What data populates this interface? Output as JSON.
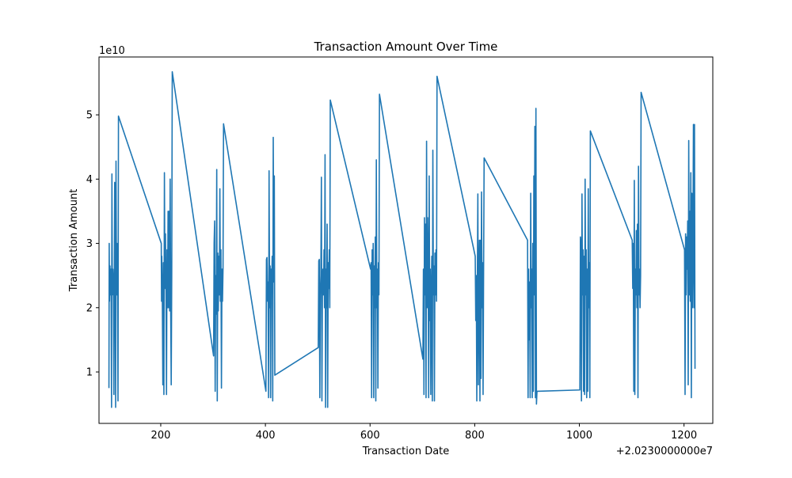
{
  "chart_data": {
    "type": "line",
    "title": "Transaction Amount Over Time",
    "xlabel": "Transaction Date",
    "ylabel": "Transaction Amount",
    "x_offset_text": "+2.0230000000e7",
    "y_scale_text": "1e10",
    "xlim": [
      20230082,
      20231255
    ],
    "ylim": [
      2000000000.0,
      59000000000.0
    ],
    "xticks": [
      20230200,
      20230400,
      20230600,
      20230800,
      20231000,
      20231200
    ],
    "xtick_labels": [
      "200",
      "400",
      "600",
      "800",
      "1000",
      "1200"
    ],
    "yticks": [
      10000000000.0,
      20000000000.0,
      30000000000.0,
      40000000000.0,
      50000000000.0
    ],
    "ytick_labels": [
      "1",
      "2",
      "3",
      "4",
      "5"
    ],
    "grid": false,
    "series": [
      {
        "color": "#1f77b4",
        "points": [
          [
            20230101,
            7500000000.0
          ],
          [
            20230101.5,
            30000000000.0
          ],
          [
            20230102,
            21000000000.0
          ],
          [
            20230103,
            26500000000.0
          ],
          [
            20230104,
            22000000000.0
          ],
          [
            20230105,
            26000000000.0
          ],
          [
            20230106,
            4500000000.0
          ],
          [
            20230106.7,
            40800000000.0
          ],
          [
            20230107.5,
            22000000000.0
          ],
          [
            20230108.5,
            26000000000.0
          ],
          [
            20230109.5,
            24000000000.0
          ],
          [
            20230110.5,
            6500000000.0
          ],
          [
            20230111.3,
            26000000000.0
          ],
          [
            20230112,
            39500000000.0
          ],
          [
            20230113,
            22000000000.0
          ],
          [
            20230113.8,
            4500000000.0
          ],
          [
            20230114.5,
            42800000000.0
          ],
          [
            20230115.5,
            22000000000.0
          ],
          [
            20230116.5,
            30000000000.0
          ],
          [
            20230117.5,
            22000000000.0
          ],
          [
            20230118.3,
            5500000000.0
          ],
          [
            20230119.2,
            49800000000.0
          ],
          [
            20230201,
            30000000000.0
          ],
          [
            20230201.5,
            21000000000.0
          ],
          [
            20230202,
            28000000000.0
          ],
          [
            20230203,
            22000000000.0
          ],
          [
            20230204,
            8000000000.0
          ],
          [
            20230205,
            27000000000.0
          ],
          [
            20230206,
            6500000000.0
          ],
          [
            20230207,
            41000000000.0
          ],
          [
            20230208,
            23000000000.0
          ],
          [
            20230209,
            31500000000.0
          ],
          [
            20230210,
            22500000000.0
          ],
          [
            20230211,
            6500000000.0
          ],
          [
            20230212,
            29000000000.0
          ],
          [
            20230213,
            20000000000.0
          ],
          [
            20230214,
            35000000000.0
          ],
          [
            20230215,
            20000000000.0
          ],
          [
            20230216,
            35000000000.0
          ],
          [
            20230217,
            19500000000.0
          ],
          [
            20230218,
            40000000000.0
          ],
          [
            20230219,
            20000000000.0
          ],
          [
            20230220,
            8000000000.0
          ],
          [
            20230221,
            25000000000.0
          ],
          [
            20230222,
            56700000000.0
          ],
          [
            20230301,
            12500000000.0
          ],
          [
            20230302,
            30000000000.0
          ],
          [
            20230303,
            33500000000.0
          ],
          [
            20230304,
            7000000000.0
          ],
          [
            20230305,
            25000000000.0
          ],
          [
            20230306,
            19000000000.0
          ],
          [
            20230307,
            41500000000.0
          ],
          [
            20230308,
            5500000000.0
          ],
          [
            20230309,
            28500000000.0
          ],
          [
            20230310,
            19500000000.0
          ],
          [
            20230311,
            28000000000.0
          ],
          [
            20230312,
            22000000000.0
          ],
          [
            20230313,
            38500000000.0
          ],
          [
            20230314,
            21000000000.0
          ],
          [
            20230315,
            29000000000.0
          ],
          [
            20230316,
            7500000000.0
          ],
          [
            20230317,
            26000000000.0
          ],
          [
            20230318,
            21000000000.0
          ],
          [
            20230319,
            26000000000.0
          ],
          [
            20230320,
            48600000000.0
          ],
          [
            20230401,
            7000000000.0
          ],
          [
            20230402,
            27500000000.0
          ],
          [
            20230403,
            27800000000.0
          ],
          [
            20230404,
            21000000000.0
          ],
          [
            20230405,
            24000000000.0
          ],
          [
            20230406,
            6000000000.0
          ],
          [
            20230407,
            41300000000.0
          ],
          [
            20230408,
            20000000000.0
          ],
          [
            20230409,
            26500000000.0
          ],
          [
            20230410,
            6000000000.0
          ],
          [
            20230411,
            26000000000.0
          ],
          [
            20230412,
            24000000000.0
          ],
          [
            20230413,
            28000000000.0
          ],
          [
            20230414,
            5500000000.0
          ],
          [
            20230415,
            46500000000.0
          ],
          [
            20230416,
            24000000000.0
          ],
          [
            20230417,
            40500000000.0
          ],
          [
            20230418,
            9500000000.0
          ],
          [
            20230501,
            13800000000.0
          ],
          [
            20230502,
            27300000000.0
          ],
          [
            20230503,
            27500000000.0
          ],
          [
            20230504,
            6000000000.0
          ],
          [
            20230505,
            22000000000.0
          ],
          [
            20230506,
            25000000000.0
          ],
          [
            20230507,
            40300000000.0
          ],
          [
            20230508,
            5500000000.0
          ],
          [
            20230509,
            24000000000.0
          ],
          [
            20230510,
            26000000000.0
          ],
          [
            20230511,
            22000000000.0
          ],
          [
            20230512,
            29000000000.0
          ],
          [
            20230513,
            20000000000.0
          ],
          [
            20230514,
            43800000000.0
          ],
          [
            20230515,
            4500000000.0
          ],
          [
            20230516,
            26000000000.0
          ],
          [
            20230517,
            20000000000.0
          ],
          [
            20230518,
            33000000000.0
          ],
          [
            20230519,
            4500000000.0
          ],
          [
            20230520,
            27000000000.0
          ],
          [
            20230521,
            23000000000.0
          ],
          [
            20230522,
            29000000000.0
          ],
          [
            20230523,
            20000000000.0
          ],
          [
            20230524,
            52300000000.0
          ],
          [
            20230601,
            26000000000.0
          ],
          [
            20230602,
            27000000000.0
          ],
          [
            20230603,
            6000000000.0
          ],
          [
            20230604,
            29000000000.0
          ],
          [
            20230605,
            22000000000.0
          ],
          [
            20230606,
            30000000000.0
          ],
          [
            20230607,
            6000000000.0
          ],
          [
            20230608,
            26500000000.0
          ],
          [
            20230609,
            20000000000.0
          ],
          [
            20230610,
            31000000000.0
          ],
          [
            20230611,
            5500000000.0
          ],
          [
            20230612,
            43000000000.0
          ],
          [
            20230613,
            20000000000.0
          ],
          [
            20230614,
            26000000000.0
          ],
          [
            20230615,
            7500000000.0
          ],
          [
            20230616,
            27000000000.0
          ],
          [
            20230617,
            22000000000.0
          ],
          [
            20230618,
            53200000000.0
          ],
          [
            20230701,
            12000000000.0
          ],
          [
            20230702,
            26000000000.0
          ],
          [
            20230703,
            6500000000.0
          ],
          [
            20230704,
            34000000000.0
          ],
          [
            20230705,
            22000000000.0
          ],
          [
            20230706,
            33000000000.0
          ],
          [
            20230707,
            6000000000.0
          ],
          [
            20230708,
            45900000000.0
          ],
          [
            20230709,
            20000000000.0
          ],
          [
            20230710,
            34000000000.0
          ],
          [
            20230711,
            26000000000.0
          ],
          [
            20230712,
            6000000000.0
          ],
          [
            20230713,
            40500000000.0
          ],
          [
            20230714,
            18000000000.0
          ],
          [
            20230715,
            26000000000.0
          ],
          [
            20230716,
            6500000000.0
          ],
          [
            20230717,
            22000000000.0
          ],
          [
            20230718,
            28000000000.0
          ],
          [
            20230719,
            5500000000.0
          ],
          [
            20230720,
            44500000000.0
          ],
          [
            20230721,
            22000000000.0
          ],
          [
            20230722,
            26500000000.0
          ],
          [
            20230723,
            5500000000.0
          ],
          [
            20230724,
            28500000000.0
          ],
          [
            20230725,
            22000000000.0
          ],
          [
            20230726,
            29000000000.0
          ],
          [
            20230727,
            21000000000.0
          ],
          [
            20230728,
            56000000000.0
          ],
          [
            20230801,
            28000000000.0
          ],
          [
            20230802,
            18000000000.0
          ],
          [
            20230803,
            25000000000.0
          ],
          [
            20230804,
            5500000000.0
          ],
          [
            20230805,
            24000000000.0
          ],
          [
            20230806,
            37700000000.0
          ],
          [
            20230807,
            8000000000.0
          ],
          [
            20230808,
            26000000000.0
          ],
          [
            20230809,
            30500000000.0
          ],
          [
            20230810,
            5500000000.0
          ],
          [
            20230811,
            30500000000.0
          ],
          [
            20230812,
            9000000000.0
          ],
          [
            20230813,
            38000000000.0
          ],
          [
            20230814,
            20000000000.0
          ],
          [
            20230815,
            27000000000.0
          ],
          [
            20230816,
            6500000000.0
          ],
          [
            20230817,
            26000000000.0
          ],
          [
            20230818,
            43300000000.0
          ],
          [
            20230901,
            30500000000.0
          ],
          [
            20230902,
            6000000000.0
          ],
          [
            20230903,
            26000000000.0
          ],
          [
            20230904,
            15000000000.0
          ],
          [
            20230905,
            24000000000.0
          ],
          [
            20230906,
            6000000000.0
          ],
          [
            20230907,
            37800000000.0
          ],
          [
            20230908,
            20000000000.0
          ],
          [
            20230909,
            26000000000.0
          ],
          [
            20230910,
            6000000000.0
          ],
          [
            20230911,
            30000000000.0
          ],
          [
            20230912,
            7000000000.0
          ],
          [
            20230913,
            40500000000.0
          ],
          [
            20230914,
            22000000000.0
          ],
          [
            20230915,
            48200000000.0
          ],
          [
            20230916,
            6000000000.0
          ],
          [
            20230917,
            51000000000.0
          ],
          [
            20230918,
            5000000000.0
          ],
          [
            20230919,
            7000000000.0
          ],
          [
            20231001,
            7200000000.0
          ],
          [
            20231002,
            31000000000.0
          ],
          [
            20231003,
            30000000000.0
          ],
          [
            20231004,
            5500000000.0
          ],
          [
            20231005,
            37700000000.0
          ],
          [
            20231006,
            22000000000.0
          ],
          [
            20231007,
            29000000000.0
          ],
          [
            20231008,
            7000000000.0
          ],
          [
            20231009,
            28000000000.0
          ],
          [
            20231010,
            6500000000.0
          ],
          [
            20231011,
            40000000000.0
          ],
          [
            20231012,
            22000000000.0
          ],
          [
            20231013,
            29000000000.0
          ],
          [
            20231014,
            6000000000.0
          ],
          [
            20231015,
            26000000000.0
          ],
          [
            20231016,
            7000000000.0
          ],
          [
            20231017,
            38500000000.0
          ],
          [
            20231018,
            20000000000.0
          ],
          [
            20231019,
            27000000000.0
          ],
          [
            20231020,
            6000000000.0
          ],
          [
            20231021,
            47500000000.0
          ],
          [
            20231101,
            30500000000.0
          ],
          [
            20231102,
            23000000000.0
          ],
          [
            20231103,
            30000000000.0
          ],
          [
            20231104,
            7000000000.0
          ],
          [
            20231105,
            39800000000.0
          ],
          [
            20231106,
            6500000000.0
          ],
          [
            20231107,
            26000000000.0
          ],
          [
            20231108,
            22000000000.0
          ],
          [
            20231109,
            32000000000.0
          ],
          [
            20231110,
            20000000000.0
          ],
          [
            20231111,
            33000000000.0
          ],
          [
            20231112,
            6000000000.0
          ],
          [
            20231113,
            42000000000.0
          ],
          [
            20231114,
            22000000000.0
          ],
          [
            20231115,
            26000000000.0
          ],
          [
            20231116,
            20000000000.0
          ],
          [
            20231117,
            25000000000.0
          ],
          [
            20231118,
            53500000000.0
          ],
          [
            20231201,
            29000000000.0
          ],
          [
            20231202,
            6500000000.0
          ],
          [
            20231203,
            31500000000.0
          ],
          [
            20231204,
            22000000000.0
          ],
          [
            20231205,
            31000000000.0
          ],
          [
            20231206,
            26000000000.0
          ],
          [
            20231207,
            33500000000.0
          ],
          [
            20231208,
            8000000000.0
          ],
          [
            20231209,
            46000000000.0
          ],
          [
            20231210,
            22000000000.0
          ],
          [
            20231211,
            35000000000.0
          ],
          [
            20231212,
            21000000000.0
          ],
          [
            20231213,
            41000000000.0
          ],
          [
            20231214,
            6000000000.0
          ],
          [
            20231215,
            37800000000.0
          ],
          [
            20231216,
            20000000000.0
          ],
          [
            20231217,
            29000000000.0
          ],
          [
            20231218,
            48500000000.0
          ],
          [
            20231219,
            20000000000.0
          ],
          [
            20231220,
            48500000000.0
          ],
          [
            20231221,
            10500000000.0
          ]
        ]
      }
    ]
  }
}
